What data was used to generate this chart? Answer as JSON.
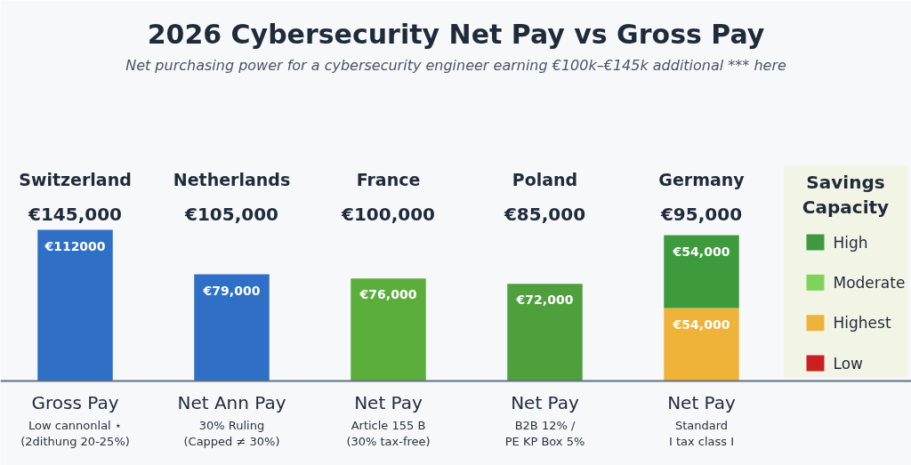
{
  "chart_data": {
    "type": "bar",
    "title": "2026 Cybersecurity Net Pay vs Gross Pay",
    "subtitle": "Net purchasing power for a cybersecurity engineer earning €100k–€145k additional *** here",
    "categories": [
      "Switzerland",
      "Netherlands",
      "France",
      "Poland",
      "Germany"
    ],
    "stacked": true,
    "series": [
      {
        "colors": [
          "#2f6fc6",
          "#2f6fc6",
          "#5cae3c",
          "#4fa03c",
          "#f0b33a"
        ],
        "values": [
          112000,
          79000,
          76000,
          72000,
          54000
        ],
        "value_labels": [
          "€112000",
          "€79,000",
          "€76,000",
          "€72,000",
          "€54,000"
        ]
      },
      {
        "name": "High",
        "color": "#3d9b3d",
        "values": [
          null,
          null,
          null,
          null,
          54000
        ],
        "value_labels": [
          null,
          null,
          null,
          null,
          "€54,000"
        ]
      },
      {
        "name": "Moderate",
        "color": "#7fd35a",
        "values": [
          null,
          null,
          null,
          null,
          null
        ]
      },
      {
        "name": "Highest",
        "color": "#f0b33a",
        "values": [
          null,
          null,
          null,
          null,
          null
        ]
      },
      {
        "name": "Low",
        "color": "#cc1f24",
        "values": [
          null,
          null,
          null,
          null,
          null
        ]
      }
    ],
    "legend": "right",
    "legend_title": "Savings Capacity",
    "annotations": [
      "€145,000",
      "€105,000",
      "€100,000",
      "€85,000",
      "€95,000",
      "Gross Pay",
      "Net Ann Pay",
      "Net Pay",
      "Net Pay",
      "Net Pay",
      "Low cannonlal ⋆",
      "30% Ruling",
      "Article 155 B",
      "B2B 12% /",
      "Standard",
      "(2dithung 20-25%)",
      "(Capped ≠ 30%)",
      "(30% tax-free)",
      "PE KP Box 5%",
      "I tax class I"
    ]
  }
}
